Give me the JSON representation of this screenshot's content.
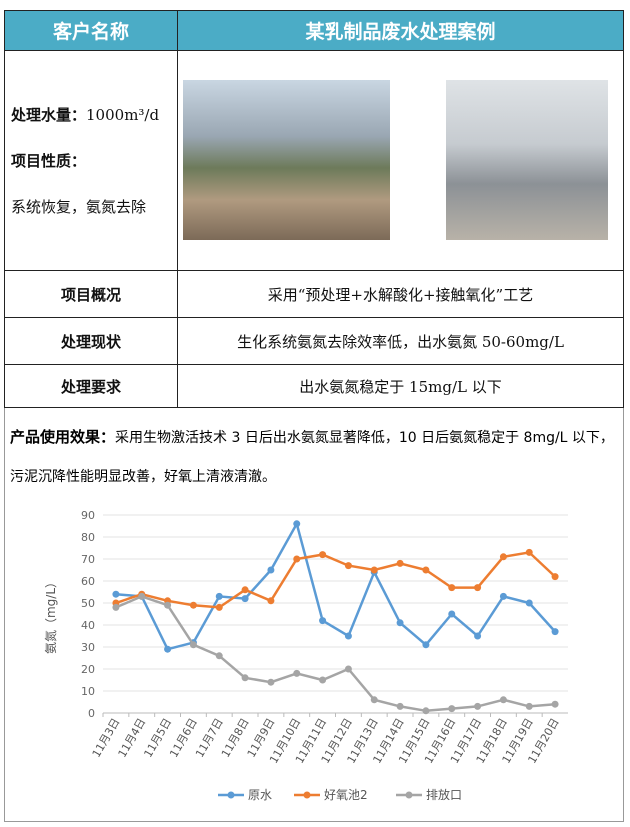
{
  "header": {
    "col1": "客户名称",
    "col2": "某乳制品废水处理案例"
  },
  "info": {
    "volume_label": "处理水量：",
    "volume_value": "1000m³/d",
    "nature_label": "项目性质：",
    "nature_value": "系统恢复，氨氮去除"
  },
  "rows": [
    {
      "label": "项目概况",
      "value": "采用“预处理+水解酸化+接触氧化”工艺"
    },
    {
      "label": "处理现状",
      "value": "生化系统氨氮去除效率低，出水氨氮 50-60mg/L"
    },
    {
      "label": "处理要求",
      "value": "出水氨氮稳定于 15mg/L 以下"
    }
  ],
  "effect": {
    "label": "产品使用效果：",
    "text": "采用生物激活技术 3 日后出水氨氮显著降低，10 日后氨氮稳定于 8mg/L 以下，污泥沉降性能明显改善，好氧上清液清澈。"
  },
  "chart_data": {
    "type": "line",
    "ylabel": "氨氮（mg/L）",
    "ylim": [
      0,
      90
    ],
    "yticks": [
      0,
      10,
      20,
      30,
      40,
      50,
      60,
      70,
      80,
      90
    ],
    "grid": true,
    "legend": "bottom",
    "categories": [
      "11月3日",
      "11月4日",
      "11月5日",
      "11月6日",
      "11月7日",
      "11月8日",
      "11月9日",
      "11月10日",
      "11月11日",
      "11月12日",
      "11月13日",
      "11月14日",
      "11月15日",
      "11月16日",
      "11月17日",
      "11月18日",
      "11月19日",
      "11月20日"
    ],
    "series": [
      {
        "name": "原水",
        "color": "#5b9bd5",
        "values": [
          54,
          53,
          29,
          32,
          53,
          52,
          65,
          86,
          42,
          35,
          64,
          41,
          31,
          45,
          35,
          53,
          50,
          37
        ]
      },
      {
        "name": "好氧池2",
        "color": "#ed7d31",
        "values": [
          50,
          54,
          51,
          49,
          48,
          56,
          51,
          70,
          72,
          67,
          65,
          68,
          65,
          57,
          57,
          71,
          73,
          62
        ]
      },
      {
        "name": "排放口",
        "color": "#a5a5a5",
        "values": [
          48,
          53,
          49,
          31,
          26,
          16,
          14,
          18,
          15,
          20,
          6,
          3,
          1,
          2,
          3,
          6,
          3,
          4
        ]
      }
    ]
  }
}
